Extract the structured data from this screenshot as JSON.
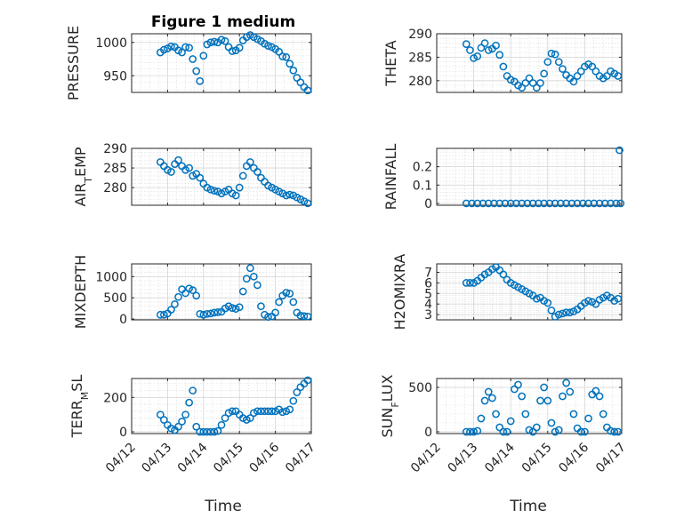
{
  "figure": {
    "title": "Figure 1 medium",
    "x_axis_label": "Time"
  },
  "colors": {
    "marker": "#0072bd",
    "axis": "#262626",
    "grid": "#d6d6d6",
    "background": "#ffffff"
  },
  "chart_data": [
    {
      "type": "scatter",
      "name": "PRESSURE",
      "ylabel": "PRESSURE",
      "ylim": [
        925,
        1013
      ],
      "yticks": [
        950,
        1000
      ],
      "xlim": [
        0,
        5
      ],
      "xticks": [
        "04/12",
        "04/13",
        "04/14",
        "04/15",
        "04/16",
        "04/17"
      ],
      "xtick_labels_shown": false,
      "grid": true,
      "title": "Figure 1 medium",
      "x": [
        0.8,
        0.9,
        1.0,
        1.1,
        1.2,
        1.3,
        1.4,
        1.5,
        1.6,
        1.7,
        1.8,
        1.9,
        2.0,
        2.1,
        2.2,
        2.3,
        2.4,
        2.5,
        2.6,
        2.7,
        2.8,
        2.9,
        3.0,
        3.1,
        3.2,
        3.3,
        3.4,
        3.5,
        3.6,
        3.7,
        3.8,
        3.9,
        4.0,
        4.1,
        4.2,
        4.3,
        4.4,
        4.5,
        4.6,
        4.7,
        4.8,
        4.9
      ],
      "y": [
        985,
        989,
        991,
        994,
        993,
        988,
        985,
        993,
        992,
        975,
        957,
        942,
        980,
        997,
        1000,
        1001,
        1000,
        1004,
        1002,
        993,
        987,
        988,
        992,
        1003,
        1008,
        1011,
        1008,
        1005,
        1002,
        998,
        995,
        993,
        990,
        986,
        979,
        978,
        968,
        958,
        947,
        940,
        933,
        928
      ]
    },
    {
      "type": "scatter",
      "name": "THETA",
      "ylabel": "THETA",
      "ylim": [
        277.5,
        290
      ],
      "yticks": [
        280,
        285,
        290
      ],
      "xlim": [
        0,
        5
      ],
      "xticks": [
        "04/12",
        "04/13",
        "04/14",
        "04/15",
        "04/16",
        "04/17"
      ],
      "xtick_labels_shown": false,
      "grid": true,
      "x": [
        0.8,
        0.9,
        1.0,
        1.1,
        1.2,
        1.3,
        1.4,
        1.5,
        1.6,
        1.7,
        1.8,
        1.9,
        2.0,
        2.1,
        2.2,
        2.3,
        2.4,
        2.5,
        2.6,
        2.7,
        2.8,
        2.9,
        3.0,
        3.1,
        3.2,
        3.3,
        3.4,
        3.5,
        3.6,
        3.7,
        3.8,
        3.9,
        4.0,
        4.1,
        4.2,
        4.3,
        4.4,
        4.5,
        4.6,
        4.7,
        4.8,
        4.9
      ],
      "y": [
        287.8,
        286.5,
        284.8,
        285.2,
        287.0,
        288.0,
        286.5,
        286.8,
        287.5,
        285.5,
        283.0,
        281.0,
        280.2,
        279.8,
        279.0,
        278.5,
        279.5,
        280.5,
        279.5,
        278.5,
        279.5,
        281.5,
        284.0,
        285.8,
        285.6,
        284.0,
        282.5,
        281.2,
        280.5,
        279.8,
        281.0,
        282.0,
        283.0,
        283.5,
        283.0,
        282.0,
        281.0,
        280.5,
        281.0,
        282.0,
        281.5,
        281.0
      ]
    },
    {
      "type": "scatter",
      "name": "AIR_TEMP",
      "ylabel": "AIR_TEMP",
      "ylim": [
        275.5,
        290
      ],
      "yticks": [
        280,
        285,
        290
      ],
      "xlim": [
        0,
        5
      ],
      "xticks": [
        "04/12",
        "04/13",
        "04/14",
        "04/15",
        "04/16",
        "04/17"
      ],
      "xtick_labels_shown": false,
      "grid": true,
      "x": [
        0.8,
        0.9,
        1.0,
        1.1,
        1.2,
        1.3,
        1.4,
        1.5,
        1.6,
        1.7,
        1.8,
        1.9,
        2.0,
        2.1,
        2.2,
        2.3,
        2.4,
        2.5,
        2.6,
        2.7,
        2.8,
        2.9,
        3.0,
        3.1,
        3.2,
        3.3,
        3.4,
        3.5,
        3.6,
        3.7,
        3.8,
        3.9,
        4.0,
        4.1,
        4.2,
        4.3,
        4.4,
        4.5,
        4.6,
        4.7,
        4.8,
        4.9
      ],
      "y": [
        286.5,
        285.5,
        284.5,
        284.0,
        286.0,
        287.0,
        285.5,
        284.5,
        285.0,
        283.0,
        283.5,
        282.5,
        281.0,
        280.0,
        279.5,
        279.2,
        279.0,
        278.5,
        279.0,
        279.5,
        278.5,
        278.0,
        280.0,
        283.0,
        285.5,
        286.5,
        285.0,
        284.0,
        282.5,
        281.5,
        280.5,
        280.0,
        279.5,
        279.0,
        278.5,
        278.0,
        278.2,
        278.0,
        277.5,
        277.0,
        276.5,
        276.0
      ]
    },
    {
      "type": "scatter",
      "name": "RAINFALL",
      "ylabel": "RAINFALL",
      "ylim": [
        -0.01,
        0.3
      ],
      "yticks": [
        0,
        0.1,
        0.2
      ],
      "xlim": [
        0,
        5
      ],
      "xticks": [
        "04/12",
        "04/13",
        "04/14",
        "04/15",
        "04/16",
        "04/17"
      ],
      "xtick_labels_shown": false,
      "grid": true,
      "x": [
        0.8,
        0.95,
        1.1,
        1.25,
        1.4,
        1.55,
        1.7,
        1.85,
        2.0,
        2.15,
        2.3,
        2.45,
        2.6,
        2.75,
        2.9,
        3.05,
        3.2,
        3.35,
        3.5,
        3.65,
        3.8,
        3.95,
        4.1,
        4.25,
        4.4,
        4.55,
        4.7,
        4.85,
        4.94,
        4.97
      ],
      "y": [
        0,
        0,
        0,
        0,
        0,
        0,
        0,
        0,
        0,
        0,
        0,
        0,
        0,
        0,
        0,
        0,
        0,
        0,
        0,
        0,
        0,
        0,
        0,
        0,
        0,
        0,
        0,
        0,
        0.29,
        0
      ]
    },
    {
      "type": "scatter",
      "name": "MIXDEPTH",
      "ylabel": "MIXDEPTH",
      "ylim": [
        -20,
        1300
      ],
      "yticks": [
        0,
        500,
        1000
      ],
      "xlim": [
        0,
        5
      ],
      "xticks": [
        "04/12",
        "04/13",
        "04/14",
        "04/15",
        "04/16",
        "04/17"
      ],
      "xtick_labels_shown": false,
      "grid": true,
      "x": [
        0.8,
        0.9,
        1.0,
        1.1,
        1.2,
        1.3,
        1.4,
        1.5,
        1.6,
        1.7,
        1.8,
        1.9,
        2.0,
        2.1,
        2.2,
        2.3,
        2.4,
        2.5,
        2.6,
        2.7,
        2.8,
        2.9,
        3.0,
        3.1,
        3.2,
        3.3,
        3.4,
        3.5,
        3.6,
        3.7,
        3.8,
        3.9,
        4.0,
        4.1,
        4.2,
        4.3,
        4.4,
        4.5,
        4.6,
        4.7,
        4.8,
        4.9
      ],
      "y": [
        100,
        100,
        130,
        220,
        350,
        520,
        700,
        610,
        720,
        680,
        550,
        120,
        100,
        120,
        130,
        150,
        160,
        170,
        250,
        300,
        260,
        240,
        280,
        650,
        950,
        1200,
        1000,
        800,
        300,
        100,
        50,
        60,
        150,
        400,
        550,
        620,
        600,
        400,
        150,
        80,
        70,
        60
      ]
    },
    {
      "type": "scatter",
      "name": "H2OMIXRA",
      "ylabel": "H2OMIXRA",
      "ylim": [
        2.5,
        7.8
      ],
      "yticks": [
        3,
        4,
        5,
        6,
        7
      ],
      "xlim": [
        0,
        5
      ],
      "xticks": [
        "04/12",
        "04/13",
        "04/14",
        "04/15",
        "04/16",
        "04/17"
      ],
      "xtick_labels_shown": false,
      "grid": true,
      "x": [
        0.8,
        0.9,
        1.0,
        1.1,
        1.2,
        1.3,
        1.4,
        1.5,
        1.6,
        1.7,
        1.8,
        1.9,
        2.0,
        2.1,
        2.2,
        2.3,
        2.4,
        2.5,
        2.6,
        2.7,
        2.8,
        2.9,
        3.0,
        3.1,
        3.2,
        3.3,
        3.4,
        3.5,
        3.6,
        3.7,
        3.8,
        3.9,
        4.0,
        4.1,
        4.2,
        4.3,
        4.4,
        4.5,
        4.6,
        4.7,
        4.8,
        4.9
      ],
      "y": [
        6.0,
        6.0,
        6.0,
        6.2,
        6.5,
        6.8,
        7.0,
        7.3,
        7.5,
        7.2,
        6.8,
        6.3,
        6.0,
        5.8,
        5.6,
        5.4,
        5.2,
        5.0,
        4.8,
        4.5,
        4.6,
        4.3,
        4.1,
        3.4,
        2.8,
        3.0,
        3.1,
        3.2,
        3.2,
        3.3,
        3.5,
        3.8,
        4.1,
        4.3,
        4.2,
        4.0,
        4.4,
        4.6,
        4.8,
        4.6,
        4.3,
        4.5
      ]
    },
    {
      "type": "scatter",
      "name": "TERR_MSL",
      "ylabel": "TERR_MSL",
      "ylim": [
        -10,
        310
      ],
      "yticks": [
        0,
        200
      ],
      "xlim": [
        0,
        5
      ],
      "xticks": [
        "04/12",
        "04/13",
        "04/14",
        "04/15",
        "04/16",
        "04/17"
      ],
      "xtick_labels_shown": true,
      "xlabel": "Time",
      "grid": true,
      "x": [
        0.8,
        0.9,
        1.0,
        1.1,
        1.2,
        1.3,
        1.4,
        1.5,
        1.6,
        1.7,
        1.8,
        1.9,
        2.0,
        2.1,
        2.2,
        2.3,
        2.4,
        2.5,
        2.6,
        2.7,
        2.8,
        2.9,
        3.0,
        3.1,
        3.2,
        3.3,
        3.4,
        3.5,
        3.6,
        3.7,
        3.8,
        3.9,
        4.0,
        4.1,
        4.2,
        4.3,
        4.4,
        4.5,
        4.6,
        4.7,
        4.8,
        4.9
      ],
      "y": [
        100,
        70,
        40,
        20,
        10,
        30,
        60,
        100,
        170,
        240,
        30,
        0,
        0,
        0,
        0,
        0,
        5,
        40,
        80,
        110,
        120,
        120,
        100,
        80,
        70,
        80,
        110,
        120,
        120,
        120,
        120,
        120,
        120,
        130,
        115,
        120,
        130,
        180,
        230,
        260,
        280,
        300
      ]
    },
    {
      "type": "scatter",
      "name": "SUN_FLUX",
      "ylabel": "SUN_FLUX",
      "ylim": [
        -20,
        600
      ],
      "yticks": [
        0,
        500
      ],
      "xlim": [
        0,
        5
      ],
      "xticks": [
        "04/12",
        "04/13",
        "04/14",
        "04/15",
        "04/16",
        "04/17"
      ],
      "xtick_labels_shown": true,
      "xlabel": "Time",
      "grid": true,
      "x": [
        0.8,
        0.9,
        1.0,
        1.1,
        1.2,
        1.3,
        1.4,
        1.5,
        1.6,
        1.7,
        1.8,
        1.9,
        2.0,
        2.1,
        2.2,
        2.3,
        2.4,
        2.5,
        2.6,
        2.7,
        2.8,
        2.9,
        3.0,
        3.1,
        3.2,
        3.3,
        3.4,
        3.5,
        3.6,
        3.7,
        3.8,
        3.9,
        4.0,
        4.1,
        4.2,
        4.3,
        4.4,
        4.5,
        4.6,
        4.7,
        4.8,
        4.9
      ],
      "y": [
        0,
        0,
        0,
        10,
        150,
        350,
        450,
        380,
        200,
        50,
        0,
        0,
        120,
        480,
        530,
        400,
        200,
        20,
        0,
        50,
        350,
        500,
        350,
        100,
        0,
        20,
        400,
        550,
        450,
        200,
        40,
        0,
        0,
        150,
        420,
        460,
        400,
        200,
        50,
        10,
        0,
        0
      ]
    }
  ]
}
